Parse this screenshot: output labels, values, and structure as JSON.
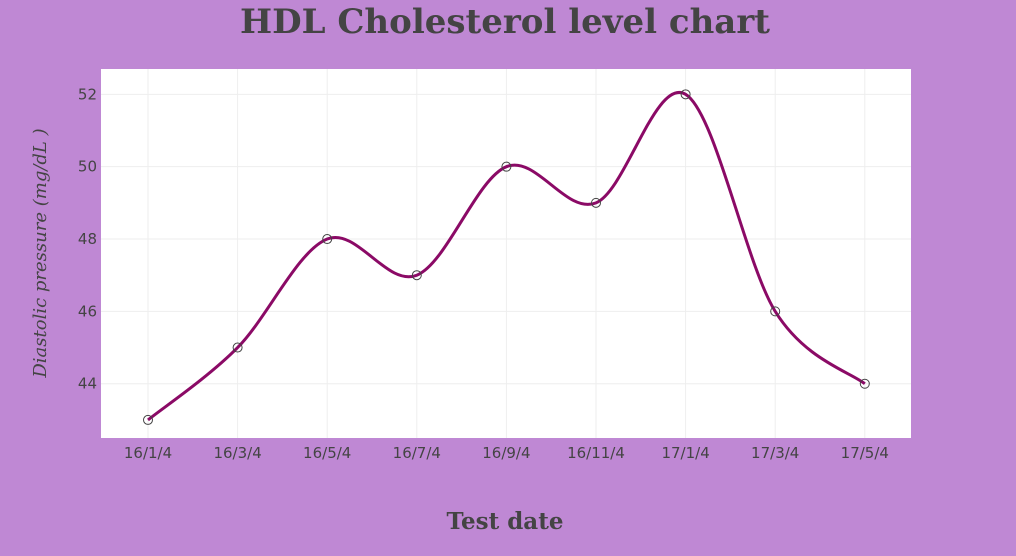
{
  "chart_data": {
    "type": "line",
    "title": "HDL Cholesterol level chart",
    "xlabel": "Test date",
    "ylabel": "Diastolic pressure  (mg/dL )",
    "categories": [
      "16/1/4",
      "16/3/4",
      "16/5/4",
      "16/7/4",
      "16/9/4",
      "16/11/4",
      "17/1/4",
      "17/3/4",
      "17/5/4"
    ],
    "series": [
      {
        "values": [
          43,
          45,
          48,
          47,
          50,
          49,
          52,
          46,
          44
        ]
      }
    ],
    "y_ticks": [
      44,
      46,
      48,
      50,
      52
    ],
    "ylim": [
      42.5,
      52.7
    ],
    "grid": true,
    "line_shape": "spline",
    "markers": "open-circle",
    "colors": {
      "background": "#bf88d4",
      "plot_background": "#ffffff",
      "line": "#8b0a66",
      "marker_edge": "#444444",
      "grid": "#eeeeee",
      "text": "#444444"
    }
  }
}
